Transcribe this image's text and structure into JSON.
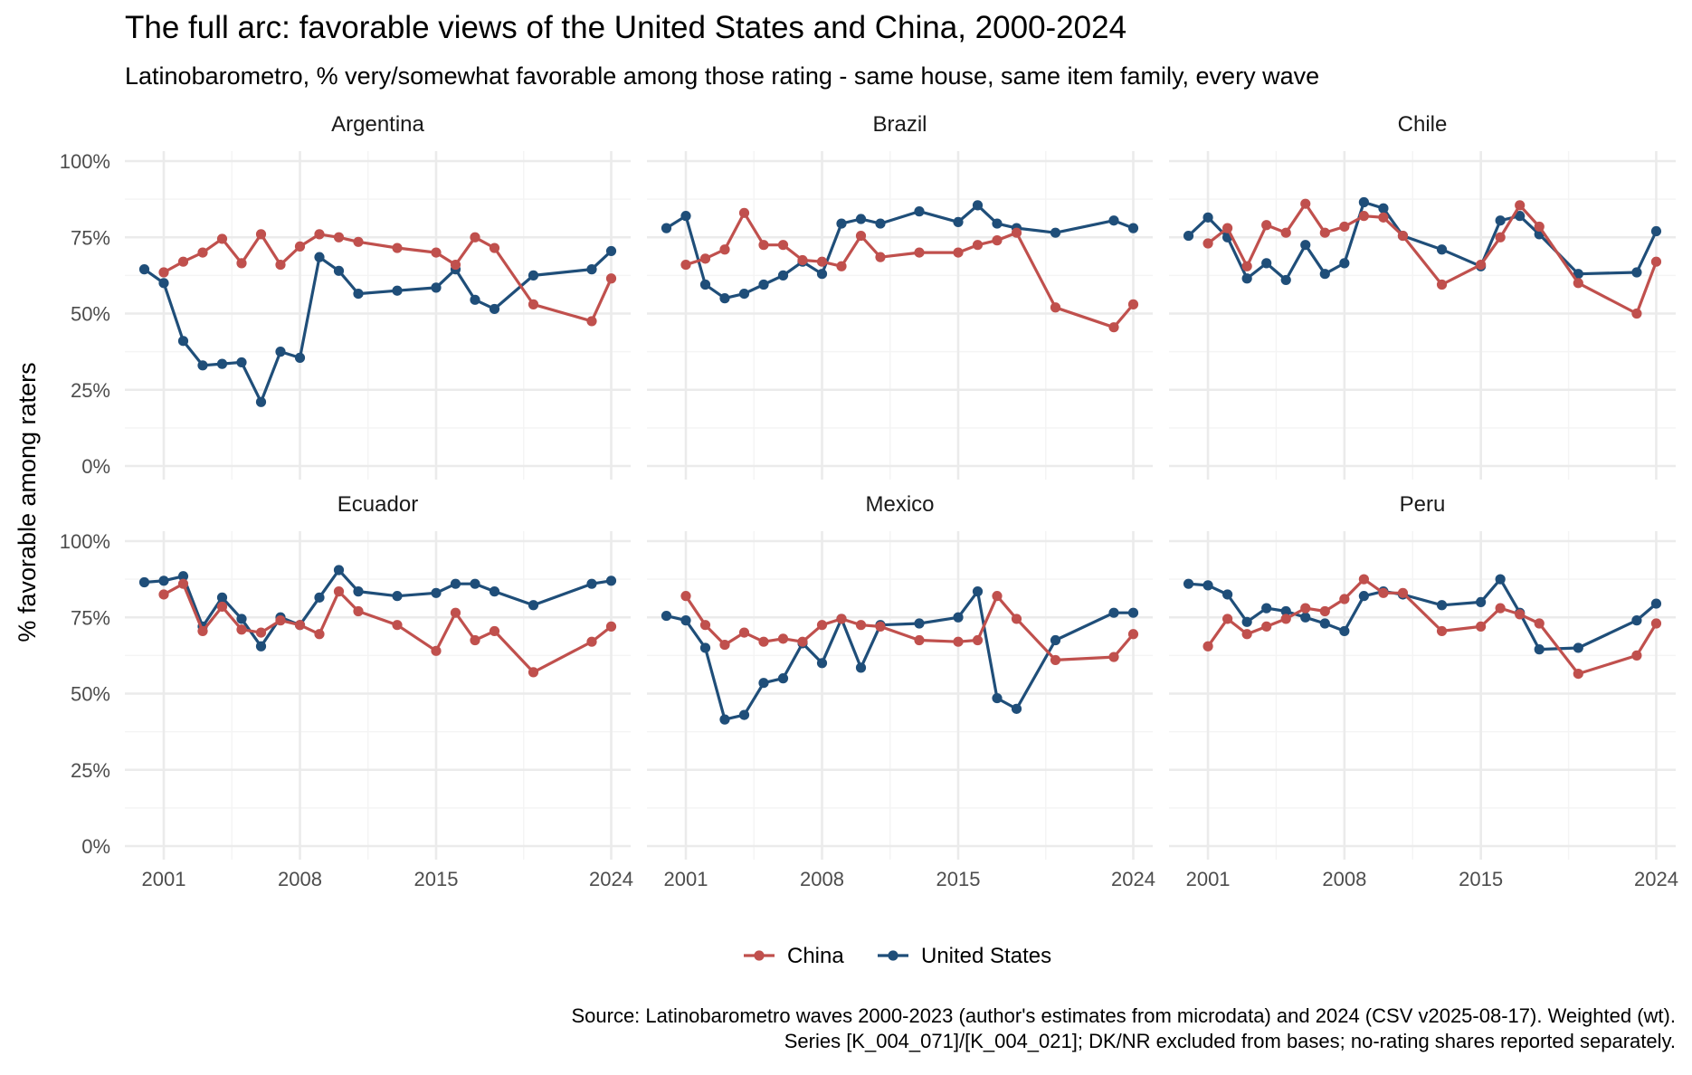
{
  "title": "The full arc: favorable views of the United States and China, 2000-2024",
  "subtitle": "Latinobarometro, % very/somewhat favorable among those rating - same house, same item family, every wave",
  "ylabel": "% favorable among raters",
  "caption_line1": "Source: Latinobarometro waves 2000-2023 (author's estimates from microdata) and 2024 (CSV v2025-08-17). Weighted (wt).",
  "caption_line2": "Series [K_004_071]/[K_004_021]; DK/NR excluded from bases; no-rating shares reported separately.",
  "colors": {
    "China": "#C0504D",
    "United States": "#1F4E79",
    "grid_major": "#EBEBEB",
    "grid_minor": "#F4F4F4",
    "axis_text": "#4D4D4D",
    "text": "#000000"
  },
  "chart_data": {
    "type": "line",
    "facets": [
      "Argentina",
      "Brazil",
      "Chile",
      "Ecuador",
      "Mexico",
      "Peru"
    ],
    "legend": {
      "position": "bottom",
      "entries": [
        "China",
        "United States"
      ]
    },
    "xlim": [
      1999,
      2025
    ],
    "x_ticks": [
      2001,
      2008,
      2015,
      2024
    ],
    "x_tick_labels": [
      "2001",
      "2008",
      "2015",
      "2024"
    ],
    "ylim": [
      0,
      100
    ],
    "y_ticks": [
      0,
      25,
      50,
      75,
      100
    ],
    "y_tick_labels": [
      "0%",
      "25%",
      "50%",
      "75%",
      "100%"
    ],
    "grid": true,
    "panels": [
      {
        "country": "Argentina",
        "series": [
          {
            "name": "China",
            "x": [
              2001,
              2002,
              2003,
              2004,
              2005,
              2006,
              2007,
              2008,
              2009,
              2010,
              2011,
              2013,
              2015,
              2016,
              2017,
              2018,
              2020,
              2023,
              2024
            ],
            "values": [
              63.5,
              67,
              70,
              74.5,
              66.5,
              76,
              66,
              72,
              76,
              75,
              73.5,
              71.5,
              70,
              66,
              75,
              71.5,
              53,
              47.5,
              61.5
            ]
          },
          {
            "name": "United States",
            "x": [
              2000,
              2001,
              2002,
              2003,
              2004,
              2005,
              2006,
              2007,
              2008,
              2009,
              2010,
              2011,
              2013,
              2015,
              2016,
              2017,
              2018,
              2020,
              2023,
              2024
            ],
            "values": [
              64.5,
              60,
              41,
              33,
              33.5,
              34,
              21,
              37.5,
              35.5,
              68.5,
              64,
              56.5,
              57.5,
              58.5,
              64.5,
              54.5,
              51.5,
              62.5,
              64.5,
              70.5
            ]
          }
        ]
      },
      {
        "country": "Brazil",
        "series": [
          {
            "name": "China",
            "x": [
              2001,
              2002,
              2003,
              2004,
              2005,
              2006,
              2007,
              2008,
              2009,
              2010,
              2011,
              2013,
              2015,
              2016,
              2017,
              2018,
              2020,
              2023,
              2024
            ],
            "values": [
              66,
              68,
              71,
              83,
              72.5,
              72.5,
              67.5,
              67,
              65.5,
              75.5,
              68.5,
              70,
              70,
              72.5,
              74,
              76.5,
              52,
              45.5,
              53
            ]
          },
          {
            "name": "United States",
            "x": [
              2000,
              2001,
              2002,
              2003,
              2004,
              2005,
              2006,
              2007,
              2008,
              2009,
              2010,
              2011,
              2013,
              2015,
              2016,
              2017,
              2018,
              2020,
              2023,
              2024
            ],
            "values": [
              78,
              82,
              59.5,
              55,
              56.5,
              59.5,
              62.5,
              67,
              63,
              79.5,
              81,
              79.5,
              83.5,
              80,
              85.5,
              79.5,
              78,
              76.5,
              80.5,
              78
            ]
          }
        ]
      },
      {
        "country": "Chile",
        "series": [
          {
            "name": "China",
            "x": [
              2001,
              2002,
              2003,
              2004,
              2005,
              2006,
              2007,
              2008,
              2009,
              2010,
              2011,
              2013,
              2015,
              2016,
              2017,
              2018,
              2020,
              2023,
              2024
            ],
            "values": [
              73,
              78,
              65.5,
              79,
              76.5,
              86,
              76.5,
              78.5,
              82,
              81.5,
              75.5,
              59.5,
              66,
              75,
              85.5,
              78.5,
              60,
              50,
              67
            ]
          },
          {
            "name": "United States",
            "x": [
              2000,
              2001,
              2002,
              2003,
              2004,
              2005,
              2006,
              2007,
              2008,
              2009,
              2010,
              2011,
              2013,
              2015,
              2016,
              2017,
              2018,
              2020,
              2023,
              2024
            ],
            "values": [
              75.5,
              81.5,
              75,
              61.5,
              66.5,
              61,
              72.5,
              63,
              66.5,
              86.5,
              84.5,
              75.5,
              71,
              65.5,
              80.5,
              82,
              76,
              63,
              63.5,
              77
            ]
          }
        ]
      },
      {
        "country": "Ecuador",
        "series": [
          {
            "name": "China",
            "x": [
              2001,
              2002,
              2003,
              2004,
              2005,
              2006,
              2007,
              2008,
              2009,
              2010,
              2011,
              2013,
              2015,
              2016,
              2017,
              2018,
              2020,
              2023,
              2024
            ],
            "values": [
              82.5,
              86,
              70.5,
              78.5,
              71,
              70,
              74,
              72.5,
              69.5,
              83.5,
              77,
              72.5,
              64,
              76.5,
              67.5,
              70.5,
              57,
              67,
              72
            ]
          },
          {
            "name": "United States",
            "x": [
              2000,
              2001,
              2002,
              2003,
              2004,
              2005,
              2006,
              2007,
              2008,
              2009,
              2010,
              2011,
              2013,
              2015,
              2016,
              2017,
              2018,
              2020,
              2023,
              2024
            ],
            "values": [
              86.5,
              87,
              88.5,
              72,
              81.5,
              74.5,
              65.5,
              75,
              72.5,
              81.5,
              90.5,
              83.5,
              82,
              83,
              86,
              86,
              83.5,
              79,
              86,
              87
            ]
          }
        ]
      },
      {
        "country": "Mexico",
        "series": [
          {
            "name": "China",
            "x": [
              2001,
              2002,
              2003,
              2004,
              2005,
              2006,
              2007,
              2008,
              2009,
              2010,
              2011,
              2013,
              2015,
              2016,
              2017,
              2018,
              2020,
              2023,
              2024
            ],
            "values": [
              82,
              72.5,
              66,
              70,
              67,
              68,
              67,
              72.5,
              74.5,
              72.5,
              72,
              67.5,
              67,
              67.5,
              82,
              74.5,
              61,
              62,
              69.5
            ]
          },
          {
            "name": "United States",
            "x": [
              2000,
              2001,
              2002,
              2003,
              2004,
              2005,
              2006,
              2007,
              2008,
              2009,
              2010,
              2011,
              2013,
              2015,
              2016,
              2017,
              2018,
              2020,
              2023,
              2024
            ],
            "values": [
              75.5,
              74,
              65,
              41.5,
              43,
              53.5,
              55,
              66.5,
              60,
              74.5,
              58.5,
              72.5,
              73,
              75,
              83.5,
              48.5,
              45,
              67.5,
              76.5,
              76.5
            ]
          }
        ]
      },
      {
        "country": "Peru",
        "series": [
          {
            "name": "China",
            "x": [
              2001,
              2002,
              2003,
              2004,
              2005,
              2006,
              2007,
              2008,
              2009,
              2010,
              2011,
              2013,
              2015,
              2016,
              2017,
              2018,
              2020,
              2023,
              2024
            ],
            "values": [
              65.5,
              74.5,
              69.5,
              72,
              74.5,
              78,
              77,
              81,
              87.5,
              83,
              83,
              70.5,
              72,
              78,
              76,
              73,
              56.5,
              62.5,
              73
            ]
          },
          {
            "name": "United States",
            "x": [
              2000,
              2001,
              2002,
              2003,
              2004,
              2005,
              2006,
              2007,
              2008,
              2009,
              2010,
              2011,
              2013,
              2015,
              2016,
              2017,
              2018,
              2020,
              2023,
              2024
            ],
            "values": [
              86,
              85.5,
              82.5,
              73.5,
              78,
              77,
              75,
              73,
              70.5,
              82,
              83.5,
              82.5,
              79,
              80,
              87.5,
              76.5,
              64.5,
              65,
              74,
              79.5
            ]
          }
        ]
      }
    ]
  }
}
